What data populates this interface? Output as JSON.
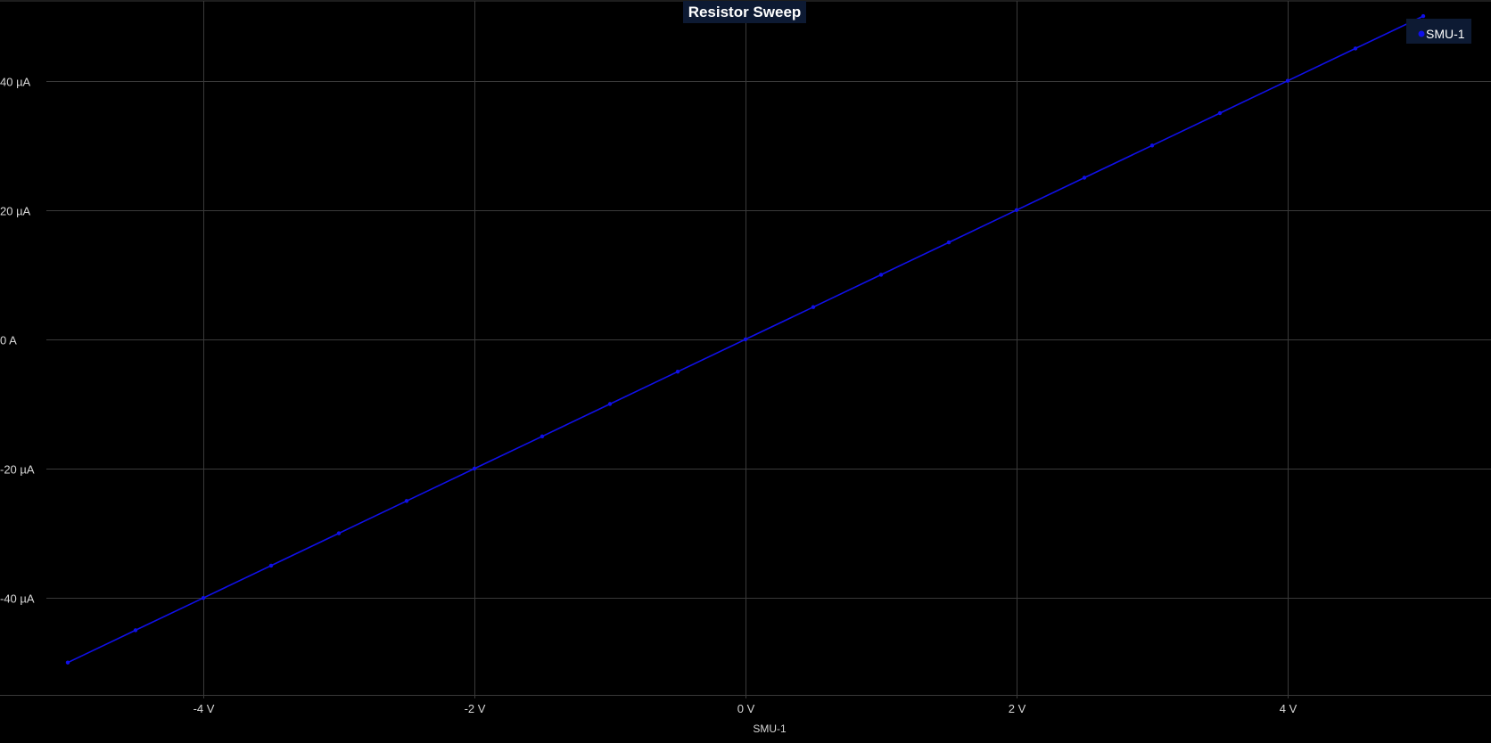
{
  "chart_data": {
    "type": "line",
    "title": "Resistor Sweep",
    "xlabel": "SMU-1",
    "ylabel": "",
    "xlim": [
      -5.5,
      5.5
    ],
    "ylim": [
      -55,
      52.5
    ],
    "x_ticks": [
      -4,
      -2,
      0,
      2,
      4
    ],
    "x_tick_labels": [
      "-4 V",
      "-2 V",
      "0 V",
      "2 V",
      "4 V"
    ],
    "y_ticks": [
      40,
      20,
      0,
      -20,
      -40
    ],
    "y_tick_labels": [
      "40 µA",
      "20 µA",
      "0 A",
      "-20 µA",
      "-40 µA"
    ],
    "grid": true,
    "legend_position": "top-right",
    "series": [
      {
        "name": "SMU-1",
        "color": "#1010e8",
        "x": [
          -5,
          -4.5,
          -4,
          -3.5,
          -3,
          -2.5,
          -2,
          -1.5,
          -1,
          -0.5,
          0,
          0.5,
          1,
          1.5,
          2,
          2.5,
          3,
          3.5,
          4,
          4.5,
          5
        ],
        "y": [
          -50,
          -45,
          -40,
          -35,
          -30,
          -25,
          -20,
          -15,
          -10,
          -5,
          0,
          5,
          10,
          15,
          20,
          25,
          30,
          35,
          40,
          45,
          50
        ]
      }
    ]
  },
  "colors": {
    "background": "#000000",
    "grid": "#3a3a3a",
    "title_background": "#0d1a33",
    "legend_background": "#0d1a33"
  }
}
